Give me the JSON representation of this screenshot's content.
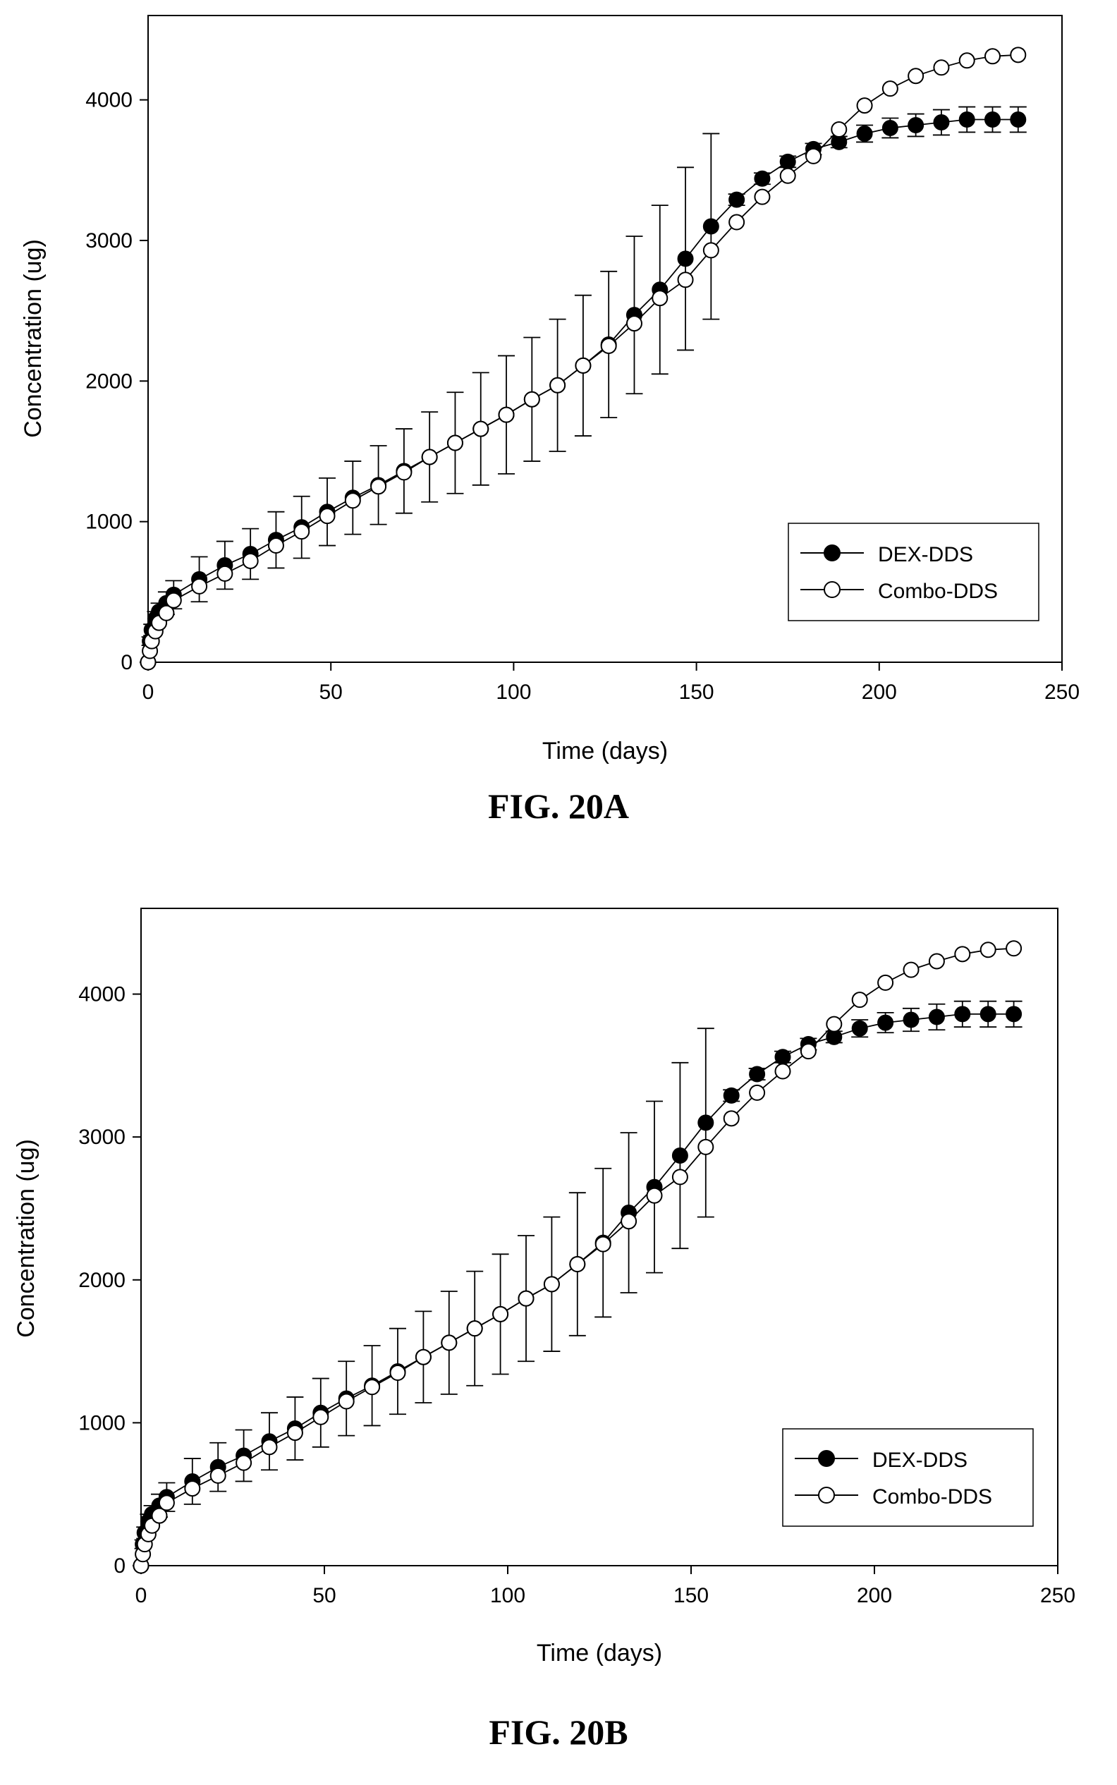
{
  "chart_data": [
    {
      "type": "line",
      "caption": "FIG. 20A",
      "xlabel": "Time (days)",
      "ylabel": "Concentration (ug)",
      "xlim": [
        0,
        250
      ],
      "ylim": [
        0,
        4600
      ],
      "xticks": [
        "0",
        "50",
        "100",
        "150",
        "200",
        "250"
      ],
      "yticks": [
        "0",
        "1000",
        "2000",
        "3000",
        "4000"
      ],
      "legend_position": "bottom-right",
      "grid": false,
      "error_bars": true,
      "series": [
        {
          "name": "DEX-DDS",
          "marker": "filled-circle",
          "x": [
            0,
            0.5,
            1,
            2,
            3,
            5,
            7,
            14,
            21,
            28,
            35,
            42,
            49,
            56,
            63,
            70,
            77,
            84,
            91,
            98,
            105,
            112,
            119,
            126,
            133,
            140,
            147,
            154,
            161,
            168,
            175,
            182,
            189,
            196,
            203,
            210,
            217,
            224,
            231,
            238
          ],
          "y": [
            0,
            150,
            230,
            310,
            360,
            420,
            480,
            590,
            690,
            770,
            870,
            960,
            1070,
            1170,
            1260,
            1360,
            1460,
            1560,
            1660,
            1760,
            1870,
            1970,
            2110,
            2260,
            2470,
            2650,
            2870,
            3100,
            3290,
            3440,
            3560,
            3650,
            3700,
            3760,
            3800,
            3820,
            3840,
            3860,
            3860,
            3860
          ],
          "error": [
            0,
            30,
            40,
            50,
            60,
            80,
            100,
            160,
            170,
            180,
            200,
            220,
            240,
            260,
            280,
            300,
            320,
            360,
            400,
            420,
            440,
            470,
            500,
            520,
            560,
            600,
            650,
            660,
            40,
            40,
            40,
            40,
            40,
            60,
            70,
            80,
            90,
            90,
            90,
            90
          ]
        },
        {
          "name": "Combo-DDS",
          "marker": "open-circle",
          "x": [
            0,
            0.5,
            1,
            2,
            3,
            5,
            7,
            14,
            21,
            28,
            35,
            42,
            49,
            56,
            63,
            70,
            77,
            84,
            91,
            98,
            105,
            112,
            119,
            126,
            133,
            140,
            147,
            154,
            161,
            168,
            175,
            182,
            189,
            196,
            203,
            210,
            217,
            224,
            231,
            238
          ],
          "y": [
            0,
            80,
            150,
            220,
            280,
            350,
            440,
            540,
            630,
            720,
            830,
            930,
            1040,
            1150,
            1250,
            1350,
            1460,
            1560,
            1660,
            1760,
            1870,
            1970,
            2110,
            2250,
            2410,
            2590,
            2720,
            2930,
            3130,
            3310,
            3460,
            3600,
            3790,
            3960,
            4080,
            4170,
            4230,
            4280,
            4310,
            4320
          ]
        }
      ]
    },
    {
      "type": "line",
      "caption": "FIG. 20B",
      "xlabel": "Time (days)",
      "ylabel": "Concentration (ug)",
      "xlim": [
        0,
        250
      ],
      "ylim": [
        0,
        4600
      ],
      "xticks": [
        "0",
        "50",
        "100",
        "150",
        "200",
        "250"
      ],
      "yticks": [
        "0",
        "1000",
        "2000",
        "3000",
        "4000"
      ],
      "legend_position": "bottom-right",
      "grid": false,
      "error_bars": true,
      "series": [
        {
          "name": "DEX-DDS",
          "marker": "filled-circle",
          "x": [
            0,
            0.5,
            1,
            2,
            3,
            5,
            7,
            14,
            21,
            28,
            35,
            42,
            49,
            56,
            63,
            70,
            77,
            84,
            91,
            98,
            105,
            112,
            119,
            126,
            133,
            140,
            147,
            154,
            161,
            168,
            175,
            182,
            189,
            196,
            203,
            210,
            217,
            224,
            231,
            238
          ],
          "y": [
            0,
            150,
            230,
            310,
            360,
            420,
            480,
            590,
            690,
            770,
            870,
            960,
            1070,
            1170,
            1260,
            1360,
            1460,
            1560,
            1660,
            1760,
            1870,
            1970,
            2110,
            2260,
            2470,
            2650,
            2870,
            3100,
            3290,
            3440,
            3560,
            3650,
            3700,
            3760,
            3800,
            3820,
            3840,
            3860,
            3860,
            3860
          ],
          "error": [
            0,
            30,
            40,
            50,
            60,
            80,
            100,
            160,
            170,
            180,
            200,
            220,
            240,
            260,
            280,
            300,
            320,
            360,
            400,
            420,
            440,
            470,
            500,
            520,
            560,
            600,
            650,
            660,
            40,
            40,
            40,
            40,
            40,
            60,
            70,
            80,
            90,
            90,
            90,
            90
          ]
        },
        {
          "name": "Combo-DDS",
          "marker": "open-circle",
          "x": [
            0,
            0.5,
            1,
            2,
            3,
            5,
            7,
            14,
            21,
            28,
            35,
            42,
            49,
            56,
            63,
            70,
            77,
            84,
            91,
            98,
            105,
            112,
            119,
            126,
            133,
            140,
            147,
            154,
            161,
            168,
            175,
            182,
            189,
            196,
            203,
            210,
            217,
            224,
            231,
            238
          ],
          "y": [
            0,
            80,
            150,
            220,
            280,
            350,
            440,
            540,
            630,
            720,
            830,
            930,
            1040,
            1150,
            1250,
            1350,
            1460,
            1560,
            1660,
            1760,
            1870,
            1970,
            2110,
            2250,
            2410,
            2590,
            2720,
            2930,
            3130,
            3310,
            3460,
            3600,
            3790,
            3960,
            4080,
            4170,
            4230,
            4280,
            4310,
            4320
          ]
        }
      ]
    }
  ]
}
